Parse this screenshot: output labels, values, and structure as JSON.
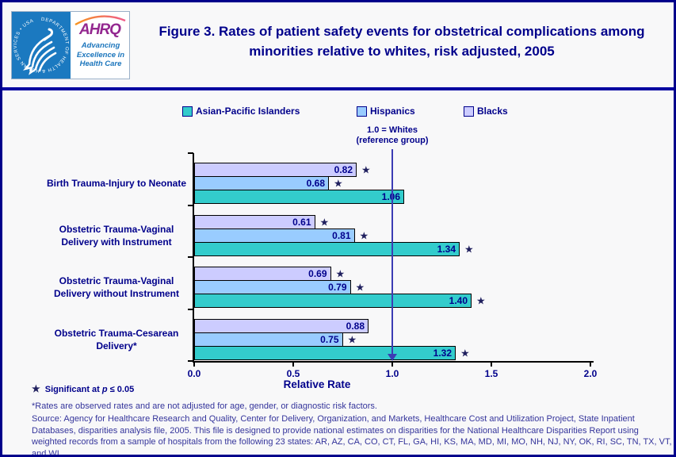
{
  "header": {
    "logo": {
      "ahrq_acronym": "AHRQ",
      "tagline": "Advancing Excellence in Health Care",
      "seal_text": "DEPARTMENT OF HEALTH & HUMAN SERVICES • USA"
    },
    "title": "Figure 3. Rates of patient safety events for obstetrical complications among minorities relative to whites, risk adjusted, 2005"
  },
  "chart_data": {
    "type": "bar",
    "orientation": "horizontal",
    "title": "Figure 3. Rates of patient safety events for obstetrical complications among minorities relative to whites, risk adjusted, 2005",
    "xlabel": "Relative Rate",
    "xlim": [
      0.0,
      2.0
    ],
    "x_ticks": [
      {
        "value": 0.0,
        "label": "0.0"
      },
      {
        "value": 0.5,
        "label": "0.5"
      },
      {
        "value": 1.0,
        "label": "1.0"
      },
      {
        "value": 1.5,
        "label": "1.5"
      },
      {
        "value": 2.0,
        "label": "2.0"
      }
    ],
    "reference_line": {
      "value": 1.0,
      "label_line1": "1.0 = Whites",
      "label_line2": "(reference group)",
      "color": "#3C3CB4"
    },
    "legend_position": "top",
    "categories": [
      "Birth Trauma-Injury to Neonate",
      "Obstetric Trauma-Vaginal Delivery with Instrument",
      "Obstetric Trauma-Vaginal Delivery without Instrument",
      "Obstetric Trauma-Cesarean Delivery*"
    ],
    "series": [
      {
        "name": "Asian-Pacific Islanders",
        "color": "#33CCCC",
        "values": [
          1.06,
          1.34,
          1.4,
          1.32
        ],
        "significant": [
          false,
          true,
          true,
          true
        ]
      },
      {
        "name": "Hispanics",
        "color": "#99CCFF",
        "values": [
          0.68,
          0.81,
          0.79,
          0.75
        ],
        "significant": [
          true,
          true,
          true,
          true
        ]
      },
      {
        "name": "Blacks",
        "color": "#CCCCFF",
        "values": [
          0.82,
          0.61,
          0.69,
          0.88
        ],
        "significant": [
          true,
          true,
          true,
          false
        ]
      }
    ],
    "bar_draw_order_top_to_bottom": [
      "Blacks",
      "Hispanics",
      "Asian-Pacific Islanders"
    ],
    "star_glyph": "★"
  },
  "notes": {
    "significance": {
      "star": "★",
      "text_prefix": "Significant at ",
      "p": "p",
      "text_suffix": " ≤ 0.05"
    },
    "footnote": "*Rates are observed rates and are not adjusted for age, gender, or diagnostic risk factors.",
    "source": "Source: Agency for Healthcare Research and Quality, Center for Delivery, Organization, and Markets, Healthcare Cost and Utilization Project, State Inpatient Databases, disparities analysis file, 2005. This file is designed to provide national estimates on disparities for the National Healthcare Disparities Report using weighted records from a sample of hospitals from the following 23 states: AR, AZ, CA, CO, CT, FL, GA, HI, KS, MA, MD, MI, MO, NH, NJ, NY, OK, RI, SC, TN, TX, VT, and WI."
  },
  "colors": {
    "border_navy": "#00008B",
    "divider_navy": "#0000A0",
    "text_navy": "#00008B",
    "note_blue": "#34349B",
    "background": "#F8F8F9",
    "hhs_blue": "#1B79C0",
    "ahrq_purple": "#93278F",
    "star_navy": "#1F1F5E"
  }
}
